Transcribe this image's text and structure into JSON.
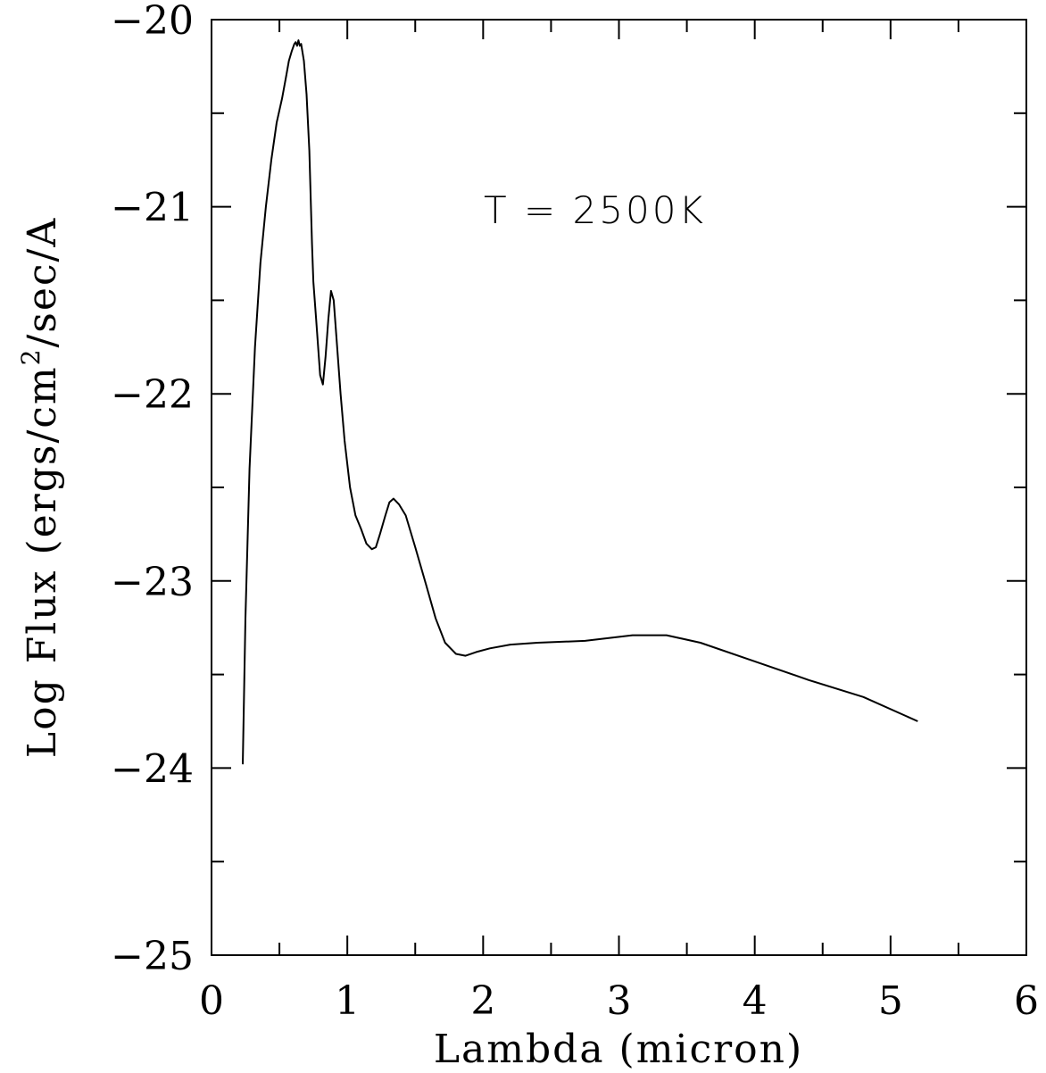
{
  "chart_data": {
    "type": "line",
    "xlabel": "Lambda (micron)",
    "ylabel_prefix": "Log Flux (ergs/cm",
    "ylabel_sup": "2",
    "ylabel_suffix": "/sec/A",
    "annotation": "T = 2500K",
    "xlim": [
      0,
      6
    ],
    "ylim": [
      -25,
      -20
    ],
    "xticks": [
      0,
      1,
      2,
      3,
      4,
      5,
      6
    ],
    "xtick_labels": [
      "0",
      "1",
      "2",
      "3",
      "4",
      "5",
      "6"
    ],
    "yticks": [
      -25,
      -24,
      -23,
      -22,
      -21,
      -20
    ],
    "ytick_labels": [
      "−25",
      "−24",
      "−23",
      "−22",
      "−21",
      "−20"
    ],
    "x_minor_step": 0.5,
    "y_minor_step": 0.5,
    "grid": false,
    "series": [
      {
        "color": "#000000",
        "points": [
          [
            0.23,
            -23.98
          ],
          [
            0.25,
            -23.2
          ],
          [
            0.28,
            -22.4
          ],
          [
            0.32,
            -21.75
          ],
          [
            0.36,
            -21.3
          ],
          [
            0.4,
            -21.0
          ],
          [
            0.44,
            -20.75
          ],
          [
            0.48,
            -20.55
          ],
          [
            0.52,
            -20.42
          ],
          [
            0.55,
            -20.3
          ],
          [
            0.57,
            -20.22
          ],
          [
            0.59,
            -20.17
          ],
          [
            0.61,
            -20.13
          ],
          [
            0.62,
            -20.12
          ],
          [
            0.63,
            -20.14
          ],
          [
            0.64,
            -20.11
          ],
          [
            0.65,
            -20.14
          ],
          [
            0.66,
            -20.13
          ],
          [
            0.68,
            -20.22
          ],
          [
            0.7,
            -20.4
          ],
          [
            0.72,
            -20.7
          ],
          [
            0.74,
            -21.2
          ],
          [
            0.75,
            -21.4
          ],
          [
            0.77,
            -21.6
          ],
          [
            0.79,
            -21.8
          ],
          [
            0.8,
            -21.9
          ],
          [
            0.82,
            -21.95
          ],
          [
            0.84,
            -21.8
          ],
          [
            0.86,
            -21.6
          ],
          [
            0.88,
            -21.45
          ],
          [
            0.9,
            -21.5
          ],
          [
            0.92,
            -21.7
          ],
          [
            0.95,
            -22.0
          ],
          [
            0.98,
            -22.25
          ],
          [
            1.02,
            -22.5
          ],
          [
            1.06,
            -22.65
          ],
          [
            1.1,
            -22.72
          ],
          [
            1.14,
            -22.8
          ],
          [
            1.18,
            -22.83
          ],
          [
            1.21,
            -22.82
          ],
          [
            1.24,
            -22.75
          ],
          [
            1.28,
            -22.65
          ],
          [
            1.31,
            -22.58
          ],
          [
            1.34,
            -22.56
          ],
          [
            1.38,
            -22.59
          ],
          [
            1.43,
            -22.65
          ],
          [
            1.5,
            -22.82
          ],
          [
            1.58,
            -23.02
          ],
          [
            1.65,
            -23.2
          ],
          [
            1.72,
            -23.33
          ],
          [
            1.8,
            -23.39
          ],
          [
            1.87,
            -23.4
          ],
          [
            1.95,
            -23.38
          ],
          [
            2.05,
            -23.36
          ],
          [
            2.2,
            -23.34
          ],
          [
            2.4,
            -23.33
          ],
          [
            2.75,
            -23.32
          ],
          [
            3.1,
            -23.29
          ],
          [
            3.35,
            -23.29
          ],
          [
            3.6,
            -23.33
          ],
          [
            4.0,
            -23.43
          ],
          [
            4.4,
            -23.53
          ],
          [
            4.8,
            -23.62
          ],
          [
            5.2,
            -23.75
          ]
        ]
      }
    ]
  }
}
